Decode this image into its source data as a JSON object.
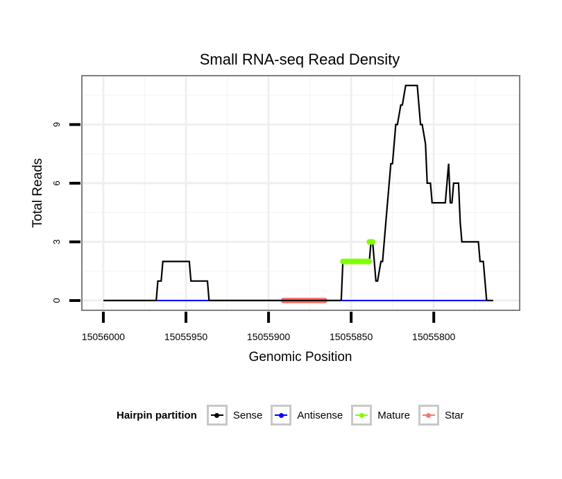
{
  "chart_data": {
    "type": "line",
    "title": "Small RNA-seq Read Density",
    "xlabel": "Genomic Position",
    "ylabel": "Total Reads",
    "x_reversed": true,
    "xlim": [
      15056013,
      15055748
    ],
    "ylim": [
      -0.5,
      11.5
    ],
    "xticks": [
      15056000,
      15055950,
      15055900,
      15055850,
      15055800
    ],
    "xtick_labels": [
      "15056000",
      "15055950",
      "15055900",
      "15055850",
      "15055800"
    ],
    "yticks": [
      0,
      3,
      6,
      9
    ],
    "ytick_labels": [
      "0",
      "3",
      "6",
      "9"
    ],
    "grid": true,
    "series": [
      {
        "name": "Sense",
        "color": "#000000",
        "points": [
          [
            15056000,
            0
          ],
          [
            15055968,
            0
          ],
          [
            15055967,
            1
          ],
          [
            15055965,
            1
          ],
          [
            15055964,
            2
          ],
          [
            15055948,
            2
          ],
          [
            15055947,
            1
          ],
          [
            15055937,
            1
          ],
          [
            15055936,
            0
          ],
          [
            15055856,
            0
          ],
          [
            15055855,
            2
          ],
          [
            15055839,
            2
          ],
          [
            15055838,
            3
          ],
          [
            15055837,
            3
          ],
          [
            15055835,
            1
          ],
          [
            15055834,
            1
          ],
          [
            15055832,
            2
          ],
          [
            15055831,
            2
          ],
          [
            15055829,
            4
          ],
          [
            15055826,
            7
          ],
          [
            15055825,
            7
          ],
          [
            15055823,
            9
          ],
          [
            15055822,
            9
          ],
          [
            15055820,
            10
          ],
          [
            15055819,
            10
          ],
          [
            15055817,
            11
          ],
          [
            15055810,
            11
          ],
          [
            15055808,
            9
          ],
          [
            15055807,
            9
          ],
          [
            15055805,
            8
          ],
          [
            15055804,
            6
          ],
          [
            15055802,
            6
          ],
          [
            15055801,
            5
          ],
          [
            15055793,
            5
          ],
          [
            15055791,
            7
          ],
          [
            15055790,
            5
          ],
          [
            15055789,
            5
          ],
          [
            15055788,
            6
          ],
          [
            15055785,
            6
          ],
          [
            15055784,
            4
          ],
          [
            15055783,
            3
          ],
          [
            15055773,
            3
          ],
          [
            15055772,
            2
          ],
          [
            15055770,
            2
          ],
          [
            15055768,
            0
          ],
          [
            15055764,
            0
          ]
        ]
      },
      {
        "name": "Antisense",
        "color": "#0000ff",
        "points": [
          [
            15055968,
            0
          ],
          [
            15055936,
            0
          ],
          [
            15055856,
            0
          ],
          [
            15055768,
            0
          ]
        ]
      },
      {
        "name": "Mature",
        "color": "#80ff00",
        "segments": [
          [
            [
              15055855,
              2
            ],
            [
              15055839,
              2
            ]
          ],
          [
            [
              15055839,
              3
            ],
            [
              15055837,
              3
            ]
          ]
        ]
      },
      {
        "name": "Star",
        "color": "#f8766d",
        "segments": [
          [
            [
              15055891,
              0
            ],
            [
              15055866,
              0
            ]
          ]
        ]
      }
    ]
  },
  "legend": {
    "title": "Hairpin partition",
    "items": [
      {
        "label": "Sense",
        "color": "#000000"
      },
      {
        "label": "Antisense",
        "color": "#0000ff"
      },
      {
        "label": "Mature",
        "color": "#80ff00"
      },
      {
        "label": "Star",
        "color": "#f8766d"
      }
    ]
  }
}
